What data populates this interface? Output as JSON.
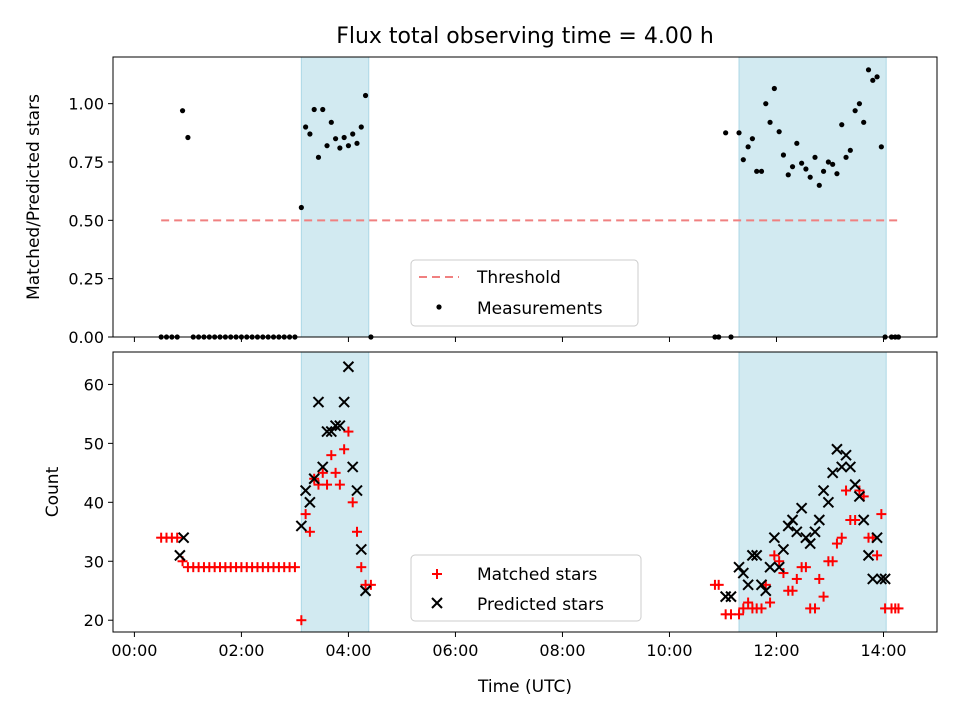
{
  "figure": {
    "title": "Flux total observing time = 4.00 h"
  },
  "colors": {
    "shade": "#add8e6",
    "threshold": "#f08080",
    "matched": "#ff0000",
    "predicted": "#000000",
    "measurement": "#000000"
  },
  "chart_data": [
    {
      "type": "scatter",
      "ylabel": "Matched/Predicted stars",
      "xlabel": "",
      "xlim": [
        -0.4,
        15.0
      ],
      "ylim": [
        0,
        1.2
      ],
      "yticks": [
        0.0,
        0.25,
        0.5,
        0.75,
        1.0
      ],
      "ytick_labels": [
        "0.00",
        "0.25",
        "0.50",
        "0.75",
        "1.00"
      ],
      "xticks": [
        0,
        2,
        4,
        6,
        8,
        10,
        12,
        14
      ],
      "shaded_intervals": [
        [
          3.12,
          4.38
        ],
        [
          11.3,
          14.05
        ]
      ],
      "legend": {
        "placement": "bottom-center",
        "entries": [
          {
            "name": "Threshold",
            "style": "dashed-line"
          },
          {
            "name": "Measurements",
            "style": "dot"
          }
        ]
      },
      "threshold": {
        "name": "Threshold",
        "value": 0.5,
        "x": [
          0.5,
          14.3
        ]
      },
      "series": [
        {
          "name": "Measurements",
          "x": [
            0.5,
            0.6,
            0.7,
            0.8,
            0.9,
            1.0,
            1.1,
            1.2,
            1.3,
            1.4,
            1.5,
            1.6,
            1.7,
            1.8,
            1.9,
            2.0,
            2.1,
            2.2,
            2.3,
            2.4,
            2.5,
            2.6,
            2.7,
            2.8,
            2.9,
            3.0,
            3.12,
            3.2,
            3.28,
            3.36,
            3.44,
            3.52,
            3.6,
            3.68,
            3.76,
            3.84,
            3.92,
            4.0,
            4.08,
            4.16,
            4.24,
            4.32,
            4.42,
            10.85,
            10.92,
            11.05,
            11.15,
            11.3,
            11.38,
            11.47,
            11.55,
            11.63,
            11.72,
            11.8,
            11.88,
            11.96,
            12.05,
            12.13,
            12.22,
            12.3,
            12.38,
            12.47,
            12.55,
            12.63,
            12.72,
            12.8,
            12.88,
            12.97,
            13.05,
            13.13,
            13.22,
            13.3,
            13.38,
            13.47,
            13.55,
            13.63,
            13.72,
            13.8,
            13.88,
            13.96,
            14.03,
            14.15,
            14.22,
            14.28
          ],
          "y": [
            0.0,
            0.0,
            0.0,
            0.0,
            0.97,
            0.855,
            0.0,
            0.0,
            0.0,
            0.0,
            0.0,
            0.0,
            0.0,
            0.0,
            0.0,
            0.0,
            0.0,
            0.0,
            0.0,
            0.0,
            0.0,
            0.0,
            0.0,
            0.0,
            0.0,
            0.0,
            0.555,
            0.9,
            0.87,
            0.975,
            0.77,
            0.975,
            0.82,
            0.92,
            0.85,
            0.81,
            0.855,
            0.82,
            0.87,
            0.83,
            0.9,
            1.035,
            0.0,
            0.0,
            0.0,
            0.875,
            0.0,
            0.875,
            0.76,
            0.815,
            0.85,
            0.71,
            0.71,
            1.0,
            0.92,
            1.065,
            0.88,
            0.78,
            0.695,
            0.73,
            0.83,
            0.745,
            0.72,
            0.685,
            0.77,
            0.65,
            0.71,
            0.75,
            0.74,
            0.7,
            0.91,
            0.77,
            0.8,
            0.97,
            1.0,
            0.92,
            1.145,
            1.1,
            1.115,
            0.815,
            0.0,
            0.0,
            0.0,
            0.0
          ]
        }
      ]
    },
    {
      "type": "scatter",
      "ylabel": "Count",
      "xlabel": "Time (UTC)",
      "xlim": [
        -0.4,
        15.0
      ],
      "ylim": [
        18,
        65.5
      ],
      "yticks": [
        20,
        30,
        40,
        50,
        60
      ],
      "ytick_labels": [
        "20",
        "30",
        "40",
        "50",
        "60"
      ],
      "xticks": [
        0,
        2,
        4,
        6,
        8,
        10,
        12,
        14
      ],
      "xtick_labels": [
        "00:00",
        "02:00",
        "04:00",
        "06:00",
        "08:00",
        "10:00",
        "12:00",
        "14:00"
      ],
      "shaded_intervals": [
        [
          3.12,
          4.38
        ],
        [
          11.3,
          14.05
        ]
      ],
      "legend": {
        "placement": "bottom-center",
        "entries": [
          {
            "name": "Matched stars",
            "style": "plus"
          },
          {
            "name": "Predicted stars",
            "style": "x"
          }
        ]
      },
      "series": [
        {
          "name": "Matched stars",
          "marker": "plus",
          "x": [
            0.5,
            0.6,
            0.7,
            0.8,
            0.9,
            1.0,
            1.1,
            1.2,
            1.3,
            1.4,
            1.5,
            1.6,
            1.7,
            1.8,
            1.9,
            2.0,
            2.1,
            2.2,
            2.3,
            2.4,
            2.5,
            2.6,
            2.7,
            2.8,
            2.9,
            3.0,
            3.12,
            3.2,
            3.28,
            3.36,
            3.44,
            3.52,
            3.6,
            3.68,
            3.76,
            3.84,
            3.92,
            4.0,
            4.08,
            4.16,
            4.24,
            4.32,
            4.42,
            10.85,
            10.92,
            11.05,
            11.15,
            11.3,
            11.38,
            11.47,
            11.55,
            11.63,
            11.72,
            11.8,
            11.88,
            11.96,
            12.05,
            12.13,
            12.22,
            12.3,
            12.38,
            12.47,
            12.55,
            12.63,
            12.72,
            12.8,
            12.88,
            12.97,
            13.05,
            13.13,
            13.22,
            13.3,
            13.38,
            13.47,
            13.55,
            13.63,
            13.72,
            13.8,
            13.88,
            13.96,
            14.03,
            14.15,
            14.22,
            14.28
          ],
          "y": [
            34,
            34,
            34,
            34,
            30,
            29,
            29,
            29,
            29,
            29,
            29,
            29,
            29,
            29,
            29,
            29,
            29,
            29,
            29,
            29,
            29,
            29,
            29,
            29,
            29,
            29,
            20,
            38,
            35,
            44,
            43,
            45,
            43,
            48,
            45,
            43,
            49,
            52,
            40,
            35,
            29,
            26,
            26,
            26,
            26,
            21,
            21,
            21,
            22,
            23,
            22,
            22,
            22,
            26,
            23,
            31,
            30,
            28,
            25,
            25,
            27,
            29,
            29,
            22,
            22,
            27,
            24,
            30,
            30,
            33,
            34,
            42,
            37,
            37,
            42,
            41,
            34,
            34,
            31,
            38,
            22,
            22,
            22,
            22
          ]
        },
        {
          "name": "Predicted stars",
          "marker": "x",
          "x": [
            0.85,
            0.92,
            3.12,
            3.2,
            3.28,
            3.36,
            3.44,
            3.52,
            3.6,
            3.68,
            3.76,
            3.84,
            3.92,
            4.0,
            4.08,
            4.16,
            4.24,
            4.32,
            11.05,
            11.15,
            11.3,
            11.38,
            11.47,
            11.55,
            11.63,
            11.72,
            11.8,
            11.88,
            11.96,
            12.05,
            12.13,
            12.22,
            12.3,
            12.38,
            12.47,
            12.55,
            12.63,
            12.72,
            12.8,
            12.88,
            12.97,
            13.05,
            13.13,
            13.22,
            13.3,
            13.38,
            13.47,
            13.55,
            13.63,
            13.72,
            13.8,
            13.88,
            13.96,
            14.03
          ],
          "y": [
            31,
            34,
            36,
            42,
            40,
            44,
            57,
            46,
            52,
            52,
            53,
            53,
            57,
            63,
            46,
            42,
            32,
            25,
            24,
            24,
            29,
            28,
            26,
            31,
            31,
            26,
            25,
            29,
            34,
            29,
            32,
            36,
            37,
            35,
            39,
            34,
            33,
            35,
            37,
            42,
            40,
            45,
            49,
            46,
            48,
            46,
            43,
            41,
            37,
            31,
            27,
            34,
            27,
            27
          ]
        }
      ]
    }
  ]
}
